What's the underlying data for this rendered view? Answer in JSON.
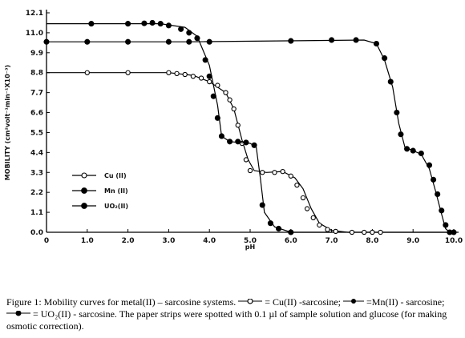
{
  "chart_data": {
    "type": "line",
    "title": "",
    "xlabel": "pH",
    "ylabel": "MOBILITY (cm²volt⁻¹min⁻¹X10⁻³)",
    "xlim": [
      0,
      10
    ],
    "ylim": [
      0,
      12.1
    ],
    "x_ticks": [
      "0",
      "1.0",
      "2.0",
      "3.0",
      "4.0",
      "5.0",
      "6.0",
      "7.0",
      "8.0",
      "9.0",
      "10.0"
    ],
    "y_ticks": [
      {
        "value": 0,
        "label": "0.0"
      },
      {
        "value": 1.1,
        "label": "1.1"
      },
      {
        "value": 2.2,
        "label": "2.2"
      },
      {
        "value": 3.3,
        "label": "3.3"
      },
      {
        "value": 4.4,
        "label": "4.4"
      },
      {
        "value": 5.5,
        "label": "5.5"
      },
      {
        "value": 6.6,
        "label": "6.6"
      },
      {
        "value": 7.7,
        "label": "7.7"
      },
      {
        "value": 8.8,
        "label": "8.8"
      },
      {
        "value": 9.9,
        "label": "9.9"
      },
      {
        "value": 11.0,
        "label": "11.0"
      },
      {
        "value": 12.1,
        "label": "12.1"
      }
    ],
    "legend_position": "center-left",
    "series": [
      {
        "name": "Cu (II)",
        "marker": "open",
        "line": [
          [
            0,
            8.8
          ],
          [
            3.0,
            8.8
          ],
          [
            3.6,
            8.65
          ],
          [
            4.0,
            8.3
          ],
          [
            4.4,
            7.7
          ],
          [
            4.6,
            6.8
          ],
          [
            4.8,
            5.1
          ],
          [
            4.95,
            4.0
          ],
          [
            5.1,
            3.4
          ],
          [
            5.4,
            3.3
          ],
          [
            5.8,
            3.35
          ],
          [
            6.1,
            3.0
          ],
          [
            6.3,
            2.4
          ],
          [
            6.5,
            1.3
          ],
          [
            6.7,
            0.5
          ],
          [
            7.0,
            0.1
          ],
          [
            7.4,
            0.0
          ],
          [
            10.0,
            0.0
          ]
        ],
        "points": [
          [
            1.0,
            8.8
          ],
          [
            2.0,
            8.8
          ],
          [
            3.0,
            8.8
          ],
          [
            3.2,
            8.75
          ],
          [
            3.4,
            8.7
          ],
          [
            3.6,
            8.6
          ],
          [
            3.8,
            8.5
          ],
          [
            4.0,
            8.3
          ],
          [
            4.2,
            8.1
          ],
          [
            4.4,
            7.7
          ],
          [
            4.5,
            7.3
          ],
          [
            4.6,
            6.8
          ],
          [
            4.7,
            5.9
          ],
          [
            4.8,
            4.9
          ],
          [
            4.9,
            4.0
          ],
          [
            5.0,
            3.4
          ],
          [
            5.3,
            3.3
          ],
          [
            5.6,
            3.3
          ],
          [
            5.8,
            3.35
          ],
          [
            6.0,
            3.1
          ],
          [
            6.15,
            2.6
          ],
          [
            6.3,
            1.9
          ],
          [
            6.4,
            1.3
          ],
          [
            6.55,
            0.8
          ],
          [
            6.7,
            0.4
          ],
          [
            6.9,
            0.15
          ],
          [
            7.1,
            0.05
          ],
          [
            7.5,
            0.0
          ],
          [
            7.8,
            0.0
          ],
          [
            8.0,
            0.0
          ],
          [
            8.2,
            0.0
          ]
        ]
      },
      {
        "name": "Mn (II)",
        "marker": "filled",
        "line": [
          [
            0,
            10.5
          ],
          [
            3.5,
            10.5
          ],
          [
            7.8,
            10.6
          ],
          [
            8.1,
            10.4
          ],
          [
            8.3,
            9.5
          ],
          [
            8.5,
            8.0
          ],
          [
            8.65,
            6.0
          ],
          [
            8.8,
            4.7
          ],
          [
            9.0,
            4.5
          ],
          [
            9.2,
            4.3
          ],
          [
            9.4,
            3.5
          ],
          [
            9.55,
            2.3
          ],
          [
            9.7,
            1.0
          ],
          [
            9.8,
            0.2
          ],
          [
            9.9,
            0.0
          ],
          [
            10.0,
            0.0
          ]
        ],
        "points": [
          [
            0.0,
            10.5
          ],
          [
            1.0,
            10.5
          ],
          [
            2.0,
            10.5
          ],
          [
            3.0,
            10.5
          ],
          [
            3.5,
            10.5
          ],
          [
            4.0,
            10.5
          ],
          [
            6.0,
            10.55
          ],
          [
            7.0,
            10.6
          ],
          [
            7.6,
            10.6
          ],
          [
            8.1,
            10.4
          ],
          [
            8.3,
            9.6
          ],
          [
            8.45,
            8.3
          ],
          [
            8.6,
            6.6
          ],
          [
            8.7,
            5.4
          ],
          [
            8.85,
            4.6
          ],
          [
            9.0,
            4.5
          ],
          [
            9.2,
            4.35
          ],
          [
            9.4,
            3.7
          ],
          [
            9.5,
            2.9
          ],
          [
            9.6,
            2.1
          ],
          [
            9.7,
            1.2
          ],
          [
            9.8,
            0.4
          ],
          [
            9.9,
            0.0
          ],
          [
            10.0,
            0.0
          ]
        ]
      },
      {
        "name": "UO₂(II)",
        "marker": "filled",
        "line": [
          [
            0,
            11.5
          ],
          [
            2.8,
            11.5
          ],
          [
            3.4,
            11.3
          ],
          [
            3.7,
            10.8
          ],
          [
            4.0,
            9.2
          ],
          [
            4.2,
            7.0
          ],
          [
            4.3,
            5.3
          ],
          [
            4.5,
            5.0
          ],
          [
            5.0,
            4.9
          ],
          [
            5.15,
            4.7
          ],
          [
            5.25,
            3.0
          ],
          [
            5.35,
            1.1
          ],
          [
            5.6,
            0.3
          ],
          [
            6.0,
            0.0
          ],
          [
            7.0,
            0.0
          ]
        ],
        "points": [
          [
            1.1,
            11.5
          ],
          [
            2.0,
            11.5
          ],
          [
            2.4,
            11.52
          ],
          [
            2.6,
            11.55
          ],
          [
            2.8,
            11.5
          ],
          [
            3.0,
            11.4
          ],
          [
            3.3,
            11.2
          ],
          [
            3.5,
            11.0
          ],
          [
            3.7,
            10.7
          ],
          [
            3.9,
            9.5
          ],
          [
            4.0,
            8.6
          ],
          [
            4.1,
            7.5
          ],
          [
            4.2,
            6.3
          ],
          [
            4.3,
            5.3
          ],
          [
            4.5,
            5.0
          ],
          [
            4.7,
            5.0
          ],
          [
            4.9,
            4.95
          ],
          [
            5.1,
            4.8
          ],
          [
            5.3,
            1.5
          ],
          [
            5.5,
            0.5
          ],
          [
            5.7,
            0.2
          ],
          [
            6.0,
            0.0
          ]
        ]
      }
    ]
  },
  "caption": {
    "part1": "Figure 1:  Mobility curves for metal(II)  –  sarcosine systems.",
    "part2": "=   Cu(II) -sarcosine;",
    "part3": "=Mn(II) - sarcosine;",
    "part4": "= UO₂(II) - sarcosine.   The paper strips were spotted with 0.1 µl of sample solution and glucose (for making osmotic correction)."
  }
}
